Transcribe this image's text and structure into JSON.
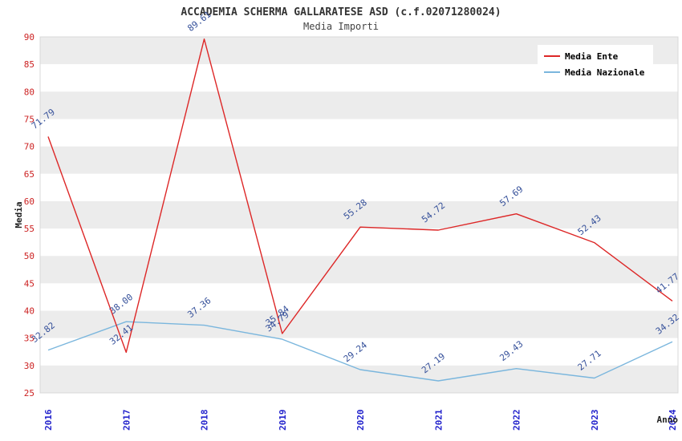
{
  "chart_data": {
    "type": "line",
    "title": "ACCADEMIA SCHERMA GALLARATESE ASD (c.f.02071280024)",
    "subtitle": "Media Importi",
    "xlabel": "Anno",
    "ylabel": "Media",
    "categories": [
      "2016",
      "2017",
      "2018",
      "2019",
      "2020",
      "2021",
      "2022",
      "2023",
      "2024"
    ],
    "series": [
      {
        "name": "Media Nazionale",
        "color": "#7ab6dd",
        "values": [
          32.82,
          38.0,
          37.36,
          34.79,
          29.24,
          27.19,
          29.43,
          27.71,
          34.32
        ]
      },
      {
        "name": "Media Ente",
        "color": "#dd2727",
        "values": [
          71.79,
          32.41,
          89.61,
          35.84,
          55.28,
          54.72,
          57.69,
          52.43,
          41.77
        ]
      }
    ],
    "ylim": [
      25,
      90
    ],
    "ytick_step": 5,
    "grid": "banded",
    "legend_position": "top-right",
    "band_color_a": "#ececec",
    "band_color_b": "#ffffff",
    "frame_color": "#d8d8d8",
    "data_label_color": "#35509a",
    "ytick_color": "#cc2222",
    "xtick_color": "#2222cc",
    "legend_text_color": "#000000",
    "legend_bg": "#ffffff"
  }
}
